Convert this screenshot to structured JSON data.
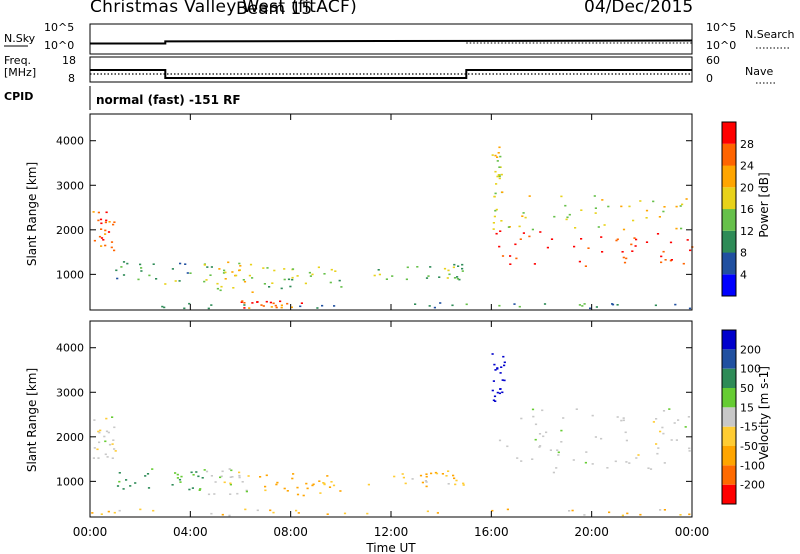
{
  "header": {
    "site": "Christmas Valley West (fitACF)",
    "beam": "Beam 15",
    "date": "04/Dec/2015"
  },
  "strip_labels": {
    "nsky": "N.Sky",
    "nsearch": "N.Search",
    "freq_line1": "Freq.",
    "freq_line2": "[MHz]",
    "nave": "Nave",
    "cpid": "CPID",
    "cpid_value": "normal (fast) -151 RF"
  },
  "strip_ticks": {
    "noise_left": [
      "10^5",
      "10^0"
    ],
    "noise_right": [
      "10^5",
      "10^0"
    ],
    "freq_left": [
      "18",
      "8"
    ],
    "nave_right": [
      "60",
      "0"
    ]
  },
  "time_axis": {
    "label": "Time UT",
    "ticks": [
      "00:00",
      "04:00",
      "08:00",
      "12:00",
      "16:00",
      "20:00",
      "00:00"
    ]
  },
  "colors": {
    "power_scale": [
      "#0000ff",
      "#2050a0",
      "#2e8b57",
      "#66c04a",
      "#e8d21a",
      "#ffa500",
      "#ff6400",
      "#ff0000"
    ],
    "velocity_scale": [
      "#ff0000",
      "#ff6a00",
      "#ffa500",
      "#ffcc33",
      "#c8c8c8",
      "#66cc33",
      "#2e8b57",
      "#2050a0",
      "#0000cc"
    ]
  },
  "chart_data": [
    {
      "type": "line",
      "title": "N.Sky / N.Search",
      "x_range_hours": [
        0,
        24
      ],
      "series": [
        {
          "name": "N.Sky",
          "x": [
            0,
            3,
            3,
            24
          ],
          "y_level": [
            0.35,
            0.35,
            0.42,
            0.45
          ]
        }
      ]
    },
    {
      "type": "line",
      "title": "Freq. [MHz] / Nave",
      "ylim": [
        8,
        18
      ],
      "series": [
        {
          "name": "Freq. [MHz]",
          "x": [
            0,
            3,
            3,
            15,
            15,
            24
          ],
          "y": [
            12.8,
            12.8,
            9.6,
            9.6,
            12.8,
            12.8
          ]
        },
        {
          "name": "Nave",
          "x": [
            0,
            24
          ],
          "y": [
            11.2,
            11.2
          ]
        }
      ]
    },
    {
      "type": "heatmap",
      "ylabel": "Slant Range [km]",
      "xlabel": "Time UT",
      "colorbar_label": "Power [dB]",
      "colorbar_ticks": [
        4,
        8,
        12,
        16,
        20,
        24,
        28
      ],
      "y_ticks": [
        1000,
        2000,
        3000,
        4000
      ],
      "ylim": [
        200,
        4600
      ],
      "xlim": [
        0,
        24
      ],
      "regions": [
        {
          "t0": 0.1,
          "t1": 1.0,
          "r0": 1500,
          "r1": 2500,
          "p": 26
        },
        {
          "t0": 1.0,
          "t1": 5.0,
          "r0": 800,
          "r1": 1300,
          "p": 12
        },
        {
          "t0": 5.0,
          "t1": 6.5,
          "r0": 600,
          "r1": 1300,
          "p": 18
        },
        {
          "t0": 6.5,
          "t1": 10.0,
          "r0": 700,
          "r1": 1200,
          "p": 14
        },
        {
          "t0": 11.0,
          "t1": 15.0,
          "r0": 900,
          "r1": 1250,
          "p": 14
        },
        {
          "t0": 6.0,
          "t1": 8.5,
          "r0": 250,
          "r1": 420,
          "p": 28
        },
        {
          "t0": 0.0,
          "t1": 24.0,
          "r0": 250,
          "r1": 380,
          "p": 10
        },
        {
          "t0": 16.0,
          "t1": 16.4,
          "r0": 2400,
          "r1": 3900,
          "p": 18
        },
        {
          "t0": 16.0,
          "t1": 24.0,
          "r0": 1200,
          "r1": 2000,
          "p": 29
        },
        {
          "t0": 16.0,
          "t1": 24.0,
          "r0": 2000,
          "r1": 2800,
          "p": 18
        }
      ]
    },
    {
      "type": "heatmap",
      "ylabel": "Slant Range [km]",
      "xlabel": "Time UT",
      "colorbar_label": "Velocity [m s-1]",
      "colorbar_ticks": [
        -200,
        -100,
        -50,
        -15,
        15,
        50,
        100,
        200
      ],
      "y_ticks": [
        1000,
        2000,
        3000,
        4000
      ],
      "ylim": [
        200,
        4600
      ],
      "xlim": [
        0,
        24
      ],
      "regions": [
        {
          "t0": 0.1,
          "t1": 1.0,
          "r0": 1500,
          "r1": 2500,
          "v": 0
        },
        {
          "t0": 1.0,
          "t1": 4.5,
          "r0": 800,
          "r1": 1300,
          "v": 40
        },
        {
          "t0": 4.5,
          "t1": 6.5,
          "r0": 700,
          "r1": 1300,
          "v": 0
        },
        {
          "t0": 6.5,
          "t1": 10.0,
          "r0": 700,
          "r1": 1200,
          "v": -40
        },
        {
          "t0": 11.0,
          "t1": 15.0,
          "r0": 900,
          "r1": 1250,
          "v": -30
        },
        {
          "t0": 0.0,
          "t1": 24.0,
          "r0": 250,
          "r1": 400,
          "v": -30
        },
        {
          "t0": 16.0,
          "t1": 16.5,
          "r0": 2800,
          "r1": 3900,
          "v": 220
        },
        {
          "t0": 16.3,
          "t1": 24.0,
          "r0": 1200,
          "r1": 2700,
          "v": 0
        }
      ]
    }
  ]
}
